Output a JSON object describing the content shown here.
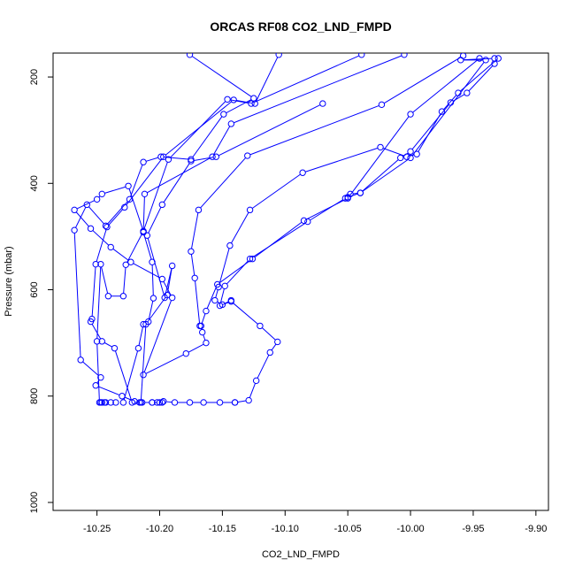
{
  "chart_data": {
    "type": "line",
    "title": "ORCAS RF08 CO2_LND_FMPD",
    "xlabel": "CO2_LND_FMPD",
    "ylabel": "Pressure (mbar)",
    "xlim": [
      -10.285,
      -9.89
    ],
    "ylim": [
      1015,
      155
    ],
    "y_reversed": true,
    "x_ticks": [
      -10.25,
      -10.2,
      -10.15,
      -10.1,
      -10.05,
      -10.0,
      -9.95,
      -9.9
    ],
    "x_tick_labels": [
      "-10.25",
      "-10.20",
      "-10.15",
      "-10.10",
      "-10.05",
      "-10.00",
      "-9.95",
      "-9.90"
    ],
    "y_ticks": [
      200,
      400,
      600,
      800,
      1000
    ],
    "y_tick_labels": [
      "200",
      "400",
      "600",
      "800",
      "1000"
    ],
    "grid": false,
    "legend": "none",
    "series": [
      {
        "color": "#0000ff",
        "marker": "open-circle",
        "x": [
          -9.945,
          -10.0,
          -10.05,
          -10.085,
          -10.126,
          -10.154,
          -10.163,
          -10.167,
          -10.166,
          -10.163,
          -10.179,
          -10.213,
          -10.19,
          -10.198,
          -10.223,
          -10.239,
          -10.255,
          -10.268,
          -10.25,
          -10.246,
          -10.225,
          -10.213
        ],
        "y": [
          165,
          270,
          428,
          470,
          542,
          590,
          640,
          668,
          680,
          700,
          720,
          760,
          615,
          580,
          548,
          520,
          485,
          450,
          430,
          420,
          405,
          490
        ]
      },
      {
        "color": "#0000ff",
        "marker": "open-circle",
        "x": [
          -10.176,
          -10.125,
          -10.149,
          -10.175,
          -10.199,
          -10.213,
          -10.224,
          -10.243,
          -10.258,
          -10.268,
          -10.263,
          -10.247,
          -10.251,
          -10.23,
          -10.22,
          -10.214,
          -10.206,
          -10.2,
          -10.198
        ],
        "y": [
          158,
          240,
          270,
          355,
          350,
          360,
          430,
          480,
          440,
          488,
          732,
          765,
          780,
          800,
          810,
          812,
          812,
          812,
          812
        ]
      },
      {
        "color": "#0000ff",
        "marker": "open-circle",
        "x": [
          -10.105,
          -10.124,
          -10.141,
          -10.197,
          -10.228,
          -10.242,
          -10.251,
          -10.254,
          -10.255,
          -10.246,
          -10.236,
          -10.222,
          -10.216
        ],
        "y": [
          158,
          250,
          243,
          350,
          445,
          482,
          552,
          655,
          660,
          697,
          710,
          812,
          812
        ]
      },
      {
        "color": "#0000ff",
        "marker": "open-circle",
        "x": [
          -10.039,
          -10.127,
          -10.146,
          -10.193,
          -10.213,
          -10.227,
          -10.229,
          -10.241,
          -10.247,
          -10.25,
          -10.248
        ],
        "y": [
          158,
          250,
          242,
          355,
          490,
          553,
          612,
          612,
          552,
          697,
          812
        ]
      },
      {
        "color": "#0000ff",
        "marker": "open-circle",
        "x": [
          -10.005,
          -10.143,
          -10.158,
          -10.212,
          -10.213,
          -10.206,
          -10.205,
          -10.209,
          -10.213,
          -10.217,
          -10.229
        ],
        "y": [
          158,
          288,
          350,
          420,
          492,
          548,
          616,
          660,
          665,
          710,
          812
        ]
      },
      {
        "color": "#0000ff",
        "marker": "open-circle",
        "x": [
          -10.07,
          -10.155,
          -10.175,
          -10.198,
          -10.21,
          -10.196,
          -10.19,
          -10.194,
          -10.211,
          -10.215
        ],
        "y": [
          250,
          350,
          358,
          440,
          498,
          615,
          555,
          610,
          665,
          812
        ]
      },
      {
        "color": "#0000ff",
        "marker": "open-circle",
        "x": [
          -9.958,
          -10.023,
          -10.13,
          -10.169,
          -10.175,
          -10.172,
          -10.168
        ],
        "y": [
          160,
          252,
          348,
          450,
          528,
          578,
          668
        ]
      },
      {
        "color": "#0000ff",
        "marker": "open-circle",
        "x": [
          -9.93,
          -9.962,
          -9.975,
          -9.995,
          -10.003,
          -10.024,
          -10.086,
          -10.128,
          -10.144,
          -10.153,
          -10.156,
          -10.15,
          -10.143
        ],
        "y": [
          165,
          230,
          265,
          345,
          350,
          332,
          380,
          450,
          517,
          595,
          620,
          628,
          620
        ]
      },
      {
        "color": "#0000ff",
        "marker": "open-circle",
        "x": [
          -9.933,
          -9.955,
          -9.968,
          -10.0,
          -10.008,
          -10.04,
          -10.048,
          -10.052,
          -10.082,
          -10.128,
          -10.148,
          -10.152,
          -10.143,
          -10.12,
          -10.106,
          -10.112,
          -10.123,
          -10.129,
          -10.14
        ],
        "y": [
          175,
          230,
          248,
          340,
          352,
          418,
          420,
          428,
          472,
          542,
          593,
          630,
          622,
          668,
          698,
          718,
          771,
          808,
          812
        ]
      },
      {
        "color": "#0000ff",
        "marker": "open-circle",
        "x": [
          -9.933,
          -9.96,
          -9.94,
          -10.0,
          -10.04,
          -10.05
        ],
        "y": [
          165,
          168,
          168,
          352,
          418,
          426
        ]
      },
      {
        "color": "#0000ff",
        "marker": "open-circle",
        "x": [
          -10.14,
          -10.152,
          -10.165,
          -10.176,
          -10.188,
          -10.197,
          -10.202,
          -10.206
        ],
        "y": [
          812,
          812,
          812,
          812,
          812,
          810,
          812,
          812
        ]
      },
      {
        "color": "#0000ff",
        "marker": "open-circle",
        "x": [
          -10.244,
          -10.246,
          -10.247,
          -10.243,
          -10.239,
          -10.235
        ],
        "y": [
          812,
          812,
          812,
          812,
          812,
          812
        ]
      }
    ]
  }
}
